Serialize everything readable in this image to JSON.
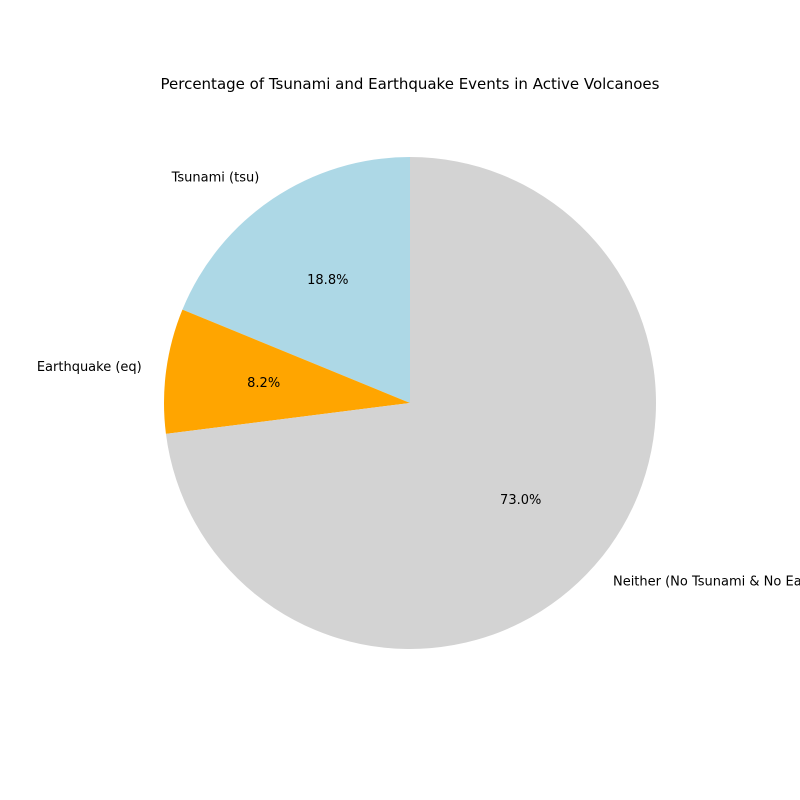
{
  "chart_data": {
    "type": "pie",
    "title": "Percentage of Tsunami and Earthquake Events in Active Volcanoes",
    "start_angle_deg": 90,
    "direction": "counterclockwise",
    "slices": [
      {
        "label": "Tsunami (tsu)",
        "value": 18.8,
        "pct_label": "18.8%",
        "color": "#add8e6"
      },
      {
        "label": "Earthquake (eq)",
        "value": 8.2,
        "pct_label": "8.2%",
        "color": "#ffa500"
      },
      {
        "label": "Neither (No Tsunami & No Earthquake)",
        "value": 73.0,
        "pct_label": "73.0%",
        "color": "#d3d3d3"
      }
    ]
  }
}
